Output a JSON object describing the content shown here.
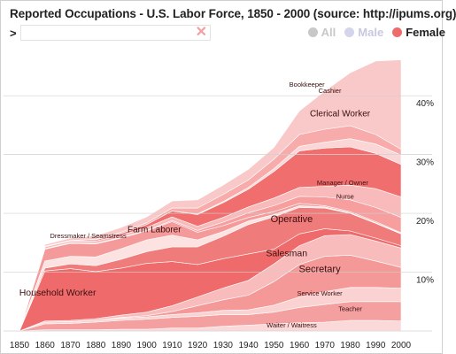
{
  "header": {
    "title": "Reported Occupations - U.S. Labor Force, 1850 - 2000 (source: http://ipums.org)",
    "prompt": ">"
  },
  "search": {
    "value": "",
    "placeholder": "",
    "clear_icon": "close-icon"
  },
  "filters": [
    {
      "id": "all",
      "label": "All",
      "color": "#c8c8c8",
      "selected": false
    },
    {
      "id": "male",
      "label": "Male",
      "color": "#c8c8e2",
      "selected": false
    },
    {
      "id": "female",
      "label": "Female",
      "color": "#ef6b6b",
      "selected": true
    }
  ],
  "chart_data": {
    "type": "area",
    "stacked": true,
    "x": [
      1850,
      1860,
      1870,
      1880,
      1890,
      1900,
      1910,
      1920,
      1930,
      1940,
      1950,
      1960,
      1970,
      1980,
      1990,
      2000
    ],
    "x_tick_labels": [
      "1850",
      "1860",
      "1870",
      "1880",
      "1890",
      "1900",
      "1910",
      "1920",
      "1930",
      "1940",
      "1950",
      "1960",
      "1970",
      "1980",
      "1990",
      "2000"
    ],
    "y_ticks": [
      10,
      20,
      30,
      40
    ],
    "y_tick_labels": [
      "10%",
      "20%",
      "30%",
      "40%"
    ],
    "ylim": [
      0,
      48
    ],
    "ylabel": "",
    "xlabel": "",
    "grid": true,
    "series": [
      {
        "name": "Waiter / Waitress",
        "color": "#fbd9d9",
        "values": [
          0,
          0.2,
          0.2,
          0.2,
          0.3,
          0.3,
          0.5,
          0.5,
          0.8,
          1.0,
          1.2,
          1.4,
          1.5,
          1.8,
          1.8,
          1.7
        ]
      },
      {
        "name": "Teacher",
        "color": "#f4a0a0",
        "values": [
          0,
          1.0,
          1.1,
          1.3,
          1.5,
          1.7,
          1.8,
          2.0,
          2.0,
          1.8,
          2.0,
          2.6,
          3.0,
          3.2,
          3.2,
          3.3
        ]
      },
      {
        "name": "Service Worker",
        "color": "#fbd2d2",
        "values": [
          0,
          0.3,
          0.3,
          0.3,
          0.4,
          0.4,
          0.5,
          0.6,
          0.7,
          0.8,
          1.2,
          1.8,
          2.2,
          2.4,
          2.4,
          2.3
        ]
      },
      {
        "name": "Secretary",
        "color": "#f49898",
        "values": [
          0,
          0,
          0,
          0,
          0.1,
          0.2,
          0.5,
          1.2,
          1.8,
          2.5,
          4.0,
          5.5,
          6.0,
          5.5,
          4.5,
          3.5
        ]
      },
      {
        "name": "Salesman",
        "color": "#f8bcbc",
        "values": [
          0,
          0.2,
          0.2,
          0.3,
          0.4,
          0.6,
          1.0,
          1.5,
          2.0,
          2.5,
          3.0,
          3.2,
          3.5,
          3.5,
          3.4,
          3.3
        ]
      },
      {
        "name": "Household Worker",
        "color": "#ef6a6a",
        "values": [
          0,
          8.5,
          8.8,
          8.0,
          8.0,
          8.3,
          7.5,
          5.5,
          5.0,
          4.5,
          2.5,
          2.0,
          1.2,
          0.6,
          0.5,
          0.4
        ]
      },
      {
        "name": "Operative",
        "color": "#ef7b7b",
        "values": [
          0,
          0.5,
          0.8,
          1.0,
          1.5,
          2.0,
          2.5,
          3.0,
          3.8,
          5.0,
          5.5,
          4.5,
          3.5,
          3.0,
          2.5,
          2.0
        ]
      },
      {
        "name": "Dressmaker / Seamstress",
        "color": "#fde2e2",
        "values": [
          0,
          1.2,
          1.3,
          1.5,
          1.8,
          2.0,
          2.0,
          1.2,
          0.8,
          0.6,
          0.4,
          0.3,
          0.2,
          0.1,
          0.1,
          0.1
        ]
      },
      {
        "name": "Farm Laborer",
        "color": "#f49a9a",
        "values": [
          0,
          2.0,
          2.2,
          2.2,
          1.8,
          1.5,
          2.3,
          1.3,
          1.0,
          0.6,
          0.5,
          0.4,
          0.2,
          0.2,
          0.2,
          0.1
        ]
      },
      {
        "name": "Nurse",
        "color": "#f79e9e",
        "values": [
          0,
          0.1,
          0.1,
          0.1,
          0.1,
          0.1,
          0.2,
          0.3,
          0.6,
          0.8,
          1.0,
          1.2,
          1.5,
          2.0,
          2.4,
          2.6
        ]
      },
      {
        "name": "Manager / Owner",
        "color": "#f8baba",
        "values": [
          0,
          0.3,
          0.3,
          0.4,
          0.4,
          0.5,
          0.6,
          0.7,
          0.8,
          1.0,
          1.3,
          1.5,
          1.8,
          2.5,
          3.2,
          3.5
        ]
      },
      {
        "name": "Clerical Worker",
        "color": "#f06e6e",
        "values": [
          0,
          0.1,
          0.1,
          0.2,
          0.3,
          0.5,
          1.0,
          2.0,
          2.5,
          3.0,
          4.5,
          6.2,
          6.5,
          6.5,
          6.0,
          5.5
        ]
      },
      {
        "name": "Cashier",
        "color": "#fbd6d6",
        "values": [
          0,
          0,
          0,
          0,
          0,
          0,
          0,
          0.1,
          0.2,
          0.3,
          0.5,
          0.8,
          1.0,
          1.4,
          1.6,
          1.6
        ]
      },
      {
        "name": "Bookkeeper",
        "color": "#f7abab",
        "values": [
          0,
          0,
          0,
          0.1,
          0.2,
          0.3,
          0.5,
          1.0,
          1.2,
          1.3,
          1.6,
          2.0,
          2.2,
          2.2,
          1.6,
          1.0
        ]
      },
      {
        "name": "",
        "color": "#f9c8c8",
        "values": [
          0,
          0.3,
          0.4,
          0.6,
          0.8,
          1.0,
          1.2,
          1.4,
          1.6,
          1.8,
          2.0,
          4.0,
          6.5,
          9.0,
          12.5,
          15.2
        ]
      }
    ],
    "labels": [
      {
        "text": "Household Worker",
        "year": 1865,
        "value": 6.0
      },
      {
        "text": "Farm Laborer",
        "year": 1903,
        "value": 16.8
      },
      {
        "text": "Dressmaker / Seamstress",
        "year": 1877,
        "value": 15.8
      },
      {
        "text": "Operative",
        "year": 1957,
        "value": 18.5
      },
      {
        "text": "Salesman",
        "year": 1955,
        "value": 12.7
      },
      {
        "text": "Secretary",
        "year": 1968,
        "value": 10.0
      },
      {
        "text": "Service Worker",
        "year": 1968,
        "value": 6.0
      },
      {
        "text": "Teacher",
        "year": 1980,
        "value": 3.4
      },
      {
        "text": "Waiter / Waitress",
        "year": 1957,
        "value": 0.6
      },
      {
        "text": "Clerical Worker",
        "year": 1976,
        "value": 36.5
      },
      {
        "text": "Manager / Owner",
        "year": 1977,
        "value": 24.8
      },
      {
        "text": "Nurse",
        "year": 1978,
        "value": 22.5
      },
      {
        "text": "Bookkeeper",
        "year": 1963,
        "value": 41.5
      },
      {
        "text": "Cashier",
        "year": 1972,
        "value": 40.5
      }
    ]
  }
}
